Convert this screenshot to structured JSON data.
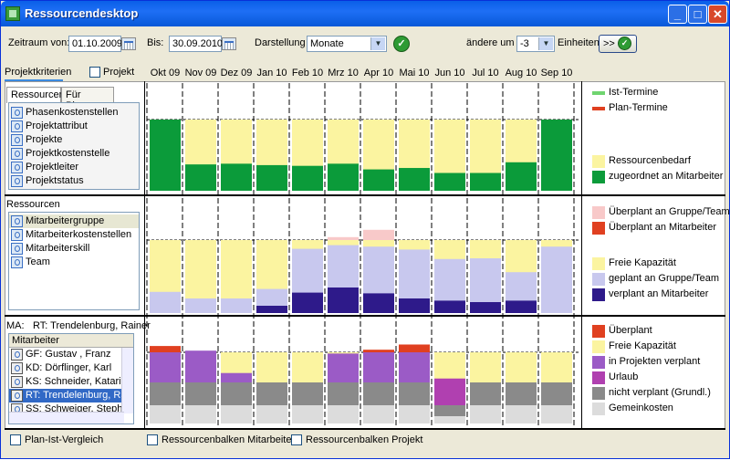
{
  "window": {
    "title": "Ressourcendesktop"
  },
  "toolbar": {
    "zeitraum_label": "Zeitraum von:",
    "von_value": "01.10.2009",
    "bis_label": "Bis:",
    "bis_value": "30.09.2010",
    "darstellung_label": "Darstellung",
    "darstellung_value": "Monate",
    "aendere_label": "ändere um",
    "aendere_value": "-3",
    "einheiten_label": "Einheiten",
    "go_label": ">>"
  },
  "left": {
    "projektkriterien": "Projektkriterien",
    "projekt_checkbox": "Projekt",
    "tabs": [
      "Ressourcen",
      "Für Planung"
    ],
    "list1": [
      "Phasenkostenstellen",
      "Projektattribut",
      "Projekte",
      "Projektkostenstelle",
      "Projektleiter",
      "Projektstatus"
    ],
    "ressourcen_label": "Ressourcen",
    "list2": [
      "Mitarbeitergruppe",
      "Mitarbeiterkostenstellen",
      "Mitarbeiterskill",
      "Team"
    ],
    "ma_label": "MA:",
    "ma_value": "RT: Trendelenburg, Rainer",
    "mitarbeiter_header": "Mitarbeiter",
    "mitarbeiter": [
      "GF: Gustav , Franz",
      "KD: Dörflinger, Karl",
      "KS: Schneider, Katarina",
      "RT: Trendelenburg, Rai",
      "SS: Schweiger, Stephan"
    ]
  },
  "months": [
    "Okt 09",
    "Nov 09",
    "Dez 09",
    "Jan 10",
    "Feb 10",
    "Mrz 10",
    "Apr 10",
    "Mai 10",
    "Jun 10",
    "Jul 10",
    "Aug 10",
    "Sep 10"
  ],
  "colors": {
    "yellow": "#fbf4a0",
    "green": "#0b9b3a",
    "lightblue": "#c8c8ee",
    "navy": "#2e1a8a",
    "pink": "#f8c9c9",
    "red": "#e04020",
    "purple": "#9b5bc6",
    "gray": "#8a8a8a",
    "magenta": "#b040b0",
    "lightgray": "#dcdcdc",
    "istgreen": "#6fd46f"
  },
  "chart_data": [
    {
      "type": "bar",
      "panel": "projects",
      "categories": [
        "Okt 09",
        "Nov 09",
        "Dez 09",
        "Jan 10",
        "Feb 10",
        "Mrz 10",
        "Apr 10",
        "Mai 10",
        "Jun 10",
        "Jul 10",
        "Aug 10",
        "Sep 10"
      ],
      "series": [
        {
          "name": "zugeordnet an Mitarbeiter",
          "values": [
            100,
            37,
            38,
            36,
            35,
            38,
            30,
            32,
            25,
            25,
            40,
            100
          ]
        },
        {
          "name": "Ressourcenbedarf",
          "values": [
            100,
            100,
            100,
            100,
            100,
            100,
            100,
            100,
            100,
            100,
            100,
            100
          ]
        }
      ]
    },
    {
      "type": "bar",
      "panel": "groups",
      "categories": [
        "Okt 09",
        "Nov 09",
        "Dez 09",
        "Jan 10",
        "Feb 10",
        "Mrz 10",
        "Apr 10",
        "Mai 10",
        "Jun 10",
        "Jul 10",
        "Aug 10",
        "Sep 10"
      ],
      "series": [
        {
          "name": "verplant an Mitarbeiter",
          "values": [
            0,
            0,
            0,
            10,
            28,
            35,
            27,
            20,
            17,
            15,
            17,
            0
          ]
        },
        {
          "name": "geplant an Gruppe/Team",
          "values": [
            29,
            20,
            20,
            33,
            88,
            93,
            91,
            87,
            74,
            75,
            56,
            91
          ]
        },
        {
          "name": "Freie Kapazität",
          "values": [
            100,
            100,
            100,
            100,
            100,
            100,
            100,
            100,
            100,
            100,
            100,
            100
          ]
        },
        {
          "name": "Überplant an Gruppe/Team",
          "values": [
            0,
            0,
            0,
            0,
            0,
            4,
            14,
            0,
            0,
            0,
            0,
            0
          ]
        }
      ]
    },
    {
      "type": "bar",
      "panel": "employee",
      "categories": [
        "Okt 09",
        "Nov 09",
        "Dez 09",
        "Jan 10",
        "Feb 10",
        "Mrz 10",
        "Apr 10",
        "Mai 10",
        "Jun 10",
        "Jul 10",
        "Aug 10",
        "Sep 10"
      ],
      "series": [
        {
          "name": "nicht verplant (Grundl.)",
          "values": [
            32,
            32,
            32,
            32,
            32,
            32,
            32,
            32,
            32,
            32,
            32,
            32
          ]
        },
        {
          "name": "in Projekten verplant",
          "values": [
            44,
            44,
            13,
            0,
            0,
            40,
            42,
            44,
            0,
            0,
            0,
            0
          ]
        },
        {
          "name": "Urlaub",
          "values": [
            0,
            0,
            0,
            0,
            0,
            0,
            0,
            0,
            37,
            0,
            0,
            0
          ]
        },
        {
          "name": "Überplant",
          "values": [
            17,
            0,
            0,
            0,
            0,
            0,
            7,
            21,
            0,
            0,
            0,
            0
          ]
        }
      ]
    }
  ],
  "legend1": [
    {
      "label": "Ist-Termine",
      "color": "#6fd46f",
      "line": true
    },
    {
      "label": "Plan-Termine",
      "color": "#e04020",
      "line": true
    },
    {
      "label": "Ressourcenbedarf",
      "color": "#fbf4a0"
    },
    {
      "label": "zugeordnet an Mitarbeiter",
      "color": "#0b9b3a"
    }
  ],
  "legend2": [
    {
      "label": "Überplant an Gruppe/Team",
      "color": "#f8c9c9"
    },
    {
      "label": "Überplant an Mitarbeiter",
      "color": "#e04020"
    },
    {
      "label": "Freie Kapazität",
      "color": "#fbf4a0"
    },
    {
      "label": "geplant an Gruppe/Team",
      "color": "#c8c8ee"
    },
    {
      "label": "verplant an Mitarbeiter",
      "color": "#2e1a8a"
    }
  ],
  "legend3": [
    {
      "label": "Überplant",
      "color": "#e04020"
    },
    {
      "label": "Freie Kapazität",
      "color": "#fbf4a0"
    },
    {
      "label": "in Projekten verplant",
      "color": "#9b5bc6"
    },
    {
      "label": "Urlaub",
      "color": "#b040b0"
    },
    {
      "label": "nicht verplant (Grundl.)",
      "color": "#8a8a8a"
    },
    {
      "label": "Gemeinkosten",
      "color": "#dcdcdc"
    }
  ],
  "status": {
    "plan_ist": "Plan-Ist-Vergleich",
    "balken_mitarbeiter": "Ressourcenbalken Mitarbeiter",
    "balken_projekt": "Ressourcenbalken Projekt"
  }
}
